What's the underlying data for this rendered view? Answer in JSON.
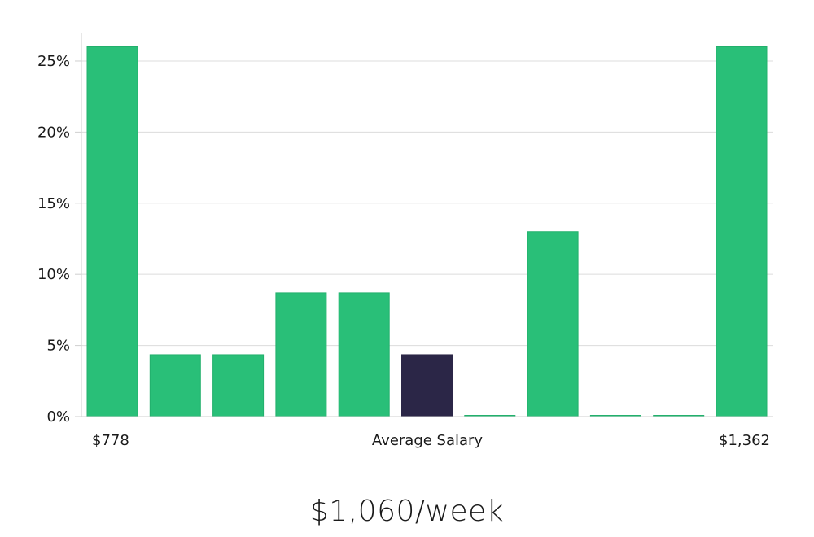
{
  "chart_data": {
    "type": "bar",
    "values": [
      26,
      4.35,
      4.35,
      8.7,
      8.7,
      4.35,
      0,
      13,
      0,
      0,
      26
    ],
    "highlight_index": 5,
    "ylim": [
      0,
      27
    ],
    "y_ticks": [
      0,
      5,
      10,
      15,
      20,
      25
    ],
    "y_tick_labels": [
      "0%",
      "5%",
      "10%",
      "15%",
      "20%",
      "25%"
    ],
    "x_min_label": "$778",
    "x_center_label": "Average Salary",
    "x_max_label": "$1,362",
    "grid": true,
    "colors": {
      "bar": "#29bf78",
      "bar_edge": "#22b06c",
      "highlight": "#2b2647"
    }
  },
  "summary": {
    "average_salary": "$1,060/week"
  }
}
